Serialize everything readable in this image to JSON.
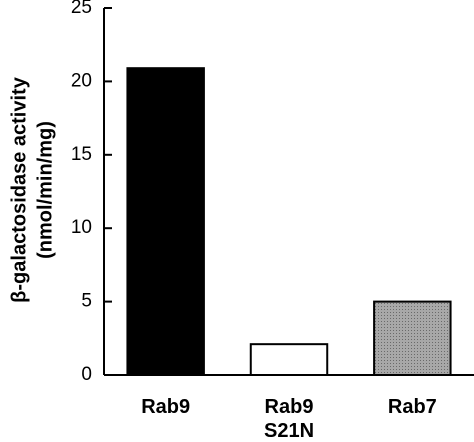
{
  "chart_data": {
    "type": "bar",
    "y_label": [
      "β-galactosidase activity",
      "(nmol/min/mg)"
    ],
    "categories": [
      "Rab9",
      "Rab9\nS21N",
      "Rab7"
    ],
    "values": [
      20.9,
      2.1,
      5.0
    ],
    "colors": [
      "#000000",
      "#ffffff",
      "#a0a0a0"
    ],
    "ylim": [
      0,
      25
    ],
    "yticks": [
      0,
      5,
      10,
      15,
      20,
      25
    ],
    "grid": false
  }
}
